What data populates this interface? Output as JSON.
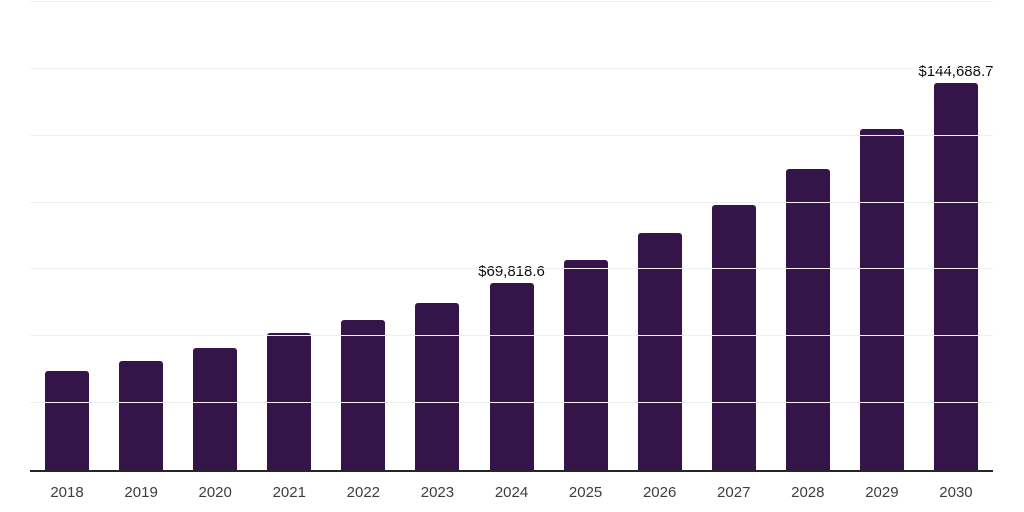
{
  "page": {
    "background_color": "#ffffff"
  },
  "chart_data": {
    "type": "bar",
    "title": "",
    "xlabel": "",
    "ylabel": "",
    "categories": [
      "2018",
      "2019",
      "2020",
      "2021",
      "2022",
      "2023",
      "2024",
      "2025",
      "2026",
      "2027",
      "2028",
      "2029",
      "2030"
    ],
    "values": [
      37100,
      40800,
      45700,
      51300,
      56200,
      62500,
      69818.6,
      78500,
      88500,
      99200,
      112500,
      127500,
      144688.7
    ],
    "data_labels": [
      {
        "category": "2024",
        "text": "$69,818.6"
      },
      {
        "category": "2030",
        "text": "$144,688.7"
      }
    ],
    "ylim": [
      0,
      175000
    ],
    "grid": {
      "axis": "y",
      "interval": 25000,
      "visible": true
    },
    "y_tick_labels_visible": false,
    "legend": "none",
    "colors": {
      "bar": "#341449",
      "gridline": "#f0f0f0",
      "axis_line": "#262626",
      "data_label": "#0d0d0d",
      "tick_label": "#3d3d3d"
    }
  }
}
